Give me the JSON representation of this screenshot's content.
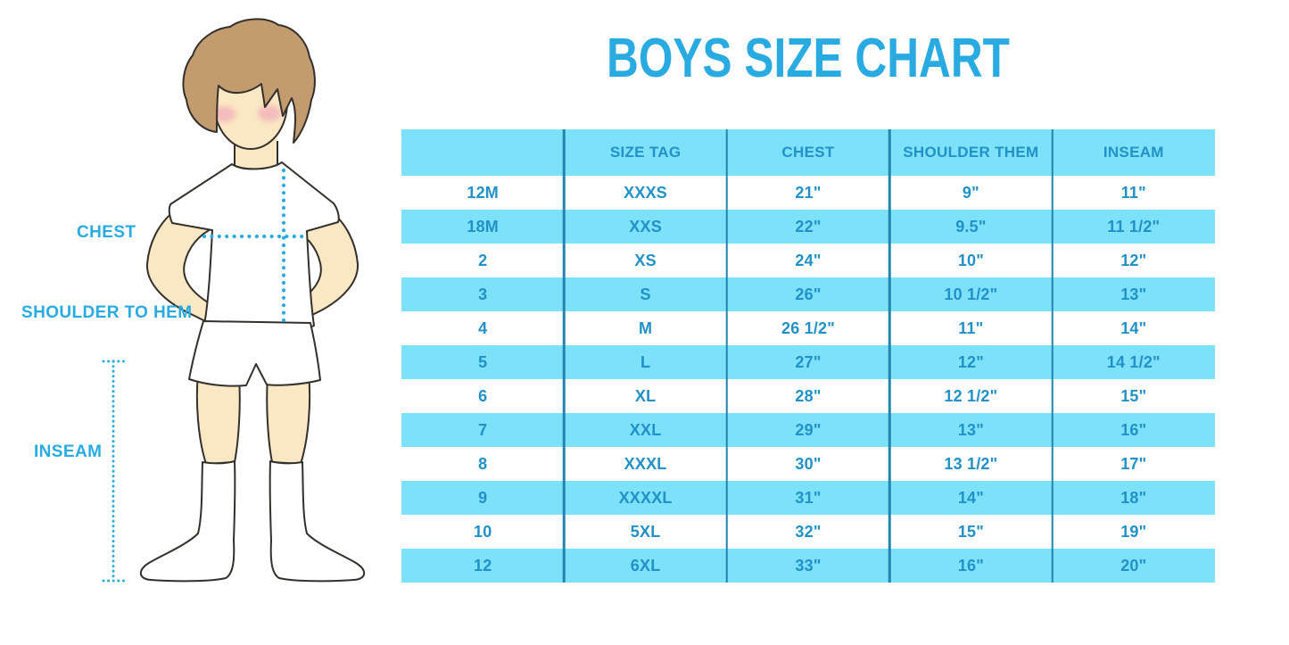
{
  "title": "BOYS SIZE CHART",
  "figure": {
    "labels": {
      "chest": "CHEST",
      "shoulder_to_hem": "SHOULDER TO HEM",
      "inseam": "INSEAM"
    }
  },
  "chart_data": {
    "type": "table",
    "title": "BOYS SIZE CHART",
    "columns": [
      "",
      "SIZE TAG",
      "CHEST",
      "SHOULDER THEM",
      "INSEAM"
    ],
    "rows": [
      [
        "12M",
        "XXXS",
        "21\"",
        "9\"",
        "11\""
      ],
      [
        "18M",
        "XXS",
        "22\"",
        "9.5\"",
        "11 1/2\""
      ],
      [
        "2",
        "XS",
        "24\"",
        "10\"",
        "12\""
      ],
      [
        "3",
        "S",
        "26\"",
        "10 1/2\"",
        "13\""
      ],
      [
        "4",
        "M",
        "26 1/2\"",
        "11\"",
        "14\""
      ],
      [
        "5",
        "L",
        "27\"",
        "12\"",
        "14 1/2\""
      ],
      [
        "6",
        "XL",
        "28\"",
        "12 1/2\"",
        "15\""
      ],
      [
        "7",
        "XXL",
        "29\"",
        "13\"",
        "16\""
      ],
      [
        "8",
        "XXXL",
        "30\"",
        "13 1/2\"",
        "17\""
      ],
      [
        "9",
        "XXXXL",
        "31\"",
        "14\"",
        "18\""
      ],
      [
        "10",
        "5XL",
        "32\"",
        "15\"",
        "19\""
      ],
      [
        "12",
        "6XL",
        "33\"",
        "16\"",
        "20\""
      ]
    ],
    "banding": "header and alternating data rows (2nd, 4th, ...) highlighted cyan",
    "grid": "vertical column separator lines only, no outer border",
    "legend_position": "none"
  },
  "colors": {
    "accent": "#29ABE2",
    "table_text": "#2191C7",
    "row_band": "#7CE1F9",
    "column_line": "#2285AE",
    "outline": "#33302C",
    "skin": "#FAE7C3",
    "hair": "#C29B6E",
    "blush": "#F0A3B8",
    "background": "#FFFFFF"
  }
}
